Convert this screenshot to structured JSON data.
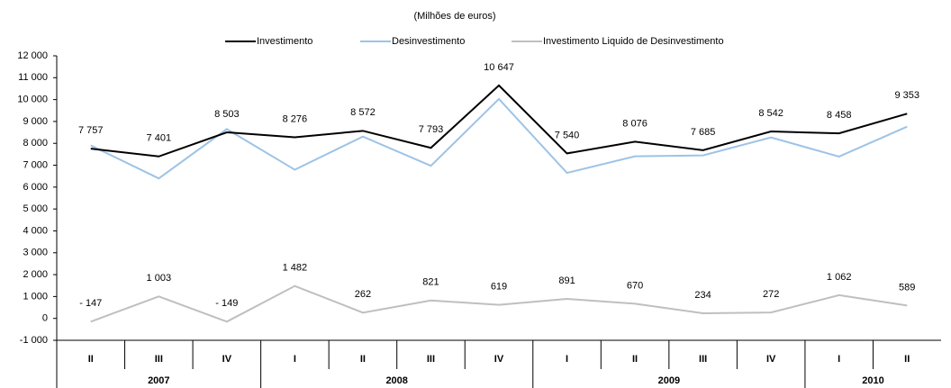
{
  "chart_data": {
    "type": "line",
    "subtitle": "(Milhões de euros)",
    "categories": [
      "II",
      "III",
      "IV",
      "I",
      "II",
      "III",
      "IV",
      "I",
      "II",
      "III",
      "IV",
      "I",
      "II"
    ],
    "x_groups": [
      "2007",
      "2007",
      "2007",
      "2008",
      "2008",
      "2008",
      "2008",
      "2009",
      "2009",
      "2009",
      "2009",
      "2010",
      "2010"
    ],
    "series": [
      {
        "name": "Investimento",
        "color": "#000000",
        "values": [
          7757,
          7401,
          8503,
          8276,
          8572,
          7793,
          10647,
          7540,
          8076,
          7685,
          8542,
          8458,
          9353
        ],
        "value_labels": [
          "7 757",
          "7 401",
          "8 503",
          "8 276",
          "8 572",
          "7 793",
          "10 647",
          "7 540",
          "8 076",
          "7 685",
          "8 542",
          "8 458",
          "9 353"
        ],
        "label_color": "#1f4e6e"
      },
      {
        "name": "Desinvestimento",
        "color": "#9dc3e6",
        "values": [
          7904,
          6398,
          8652,
          6794,
          8310,
          6972,
          10028,
          6649,
          7406,
          7451,
          8270,
          7396,
          8764
        ]
      },
      {
        "name": "Investimento Liquido de Desinvestimento",
        "color": "#bfbfbf",
        "values": [
          -147,
          1003,
          -149,
          1482,
          262,
          821,
          619,
          891,
          670,
          234,
          272,
          1062,
          589
        ],
        "value_labels": [
          "- 147",
          "1 003",
          "- 149",
          "1 482",
          "262",
          "821",
          "619",
          "891",
          "670",
          "234",
          "272",
          "1 062",
          "589"
        ],
        "label_color": "#bfbfbf"
      }
    ],
    "ylim": [
      -1000,
      12000
    ],
    "yticks": [
      {
        "value": -1000,
        "label": "-1 000"
      },
      0,
      {
        "value": 1000,
        "label": "1 000"
      },
      {
        "value": 2000,
        "label": "2 000"
      },
      {
        "value": 3000,
        "label": "3 000"
      },
      {
        "value": 4000,
        "label": "4 000"
      },
      {
        "value": 5000,
        "label": "5 000"
      },
      {
        "value": 6000,
        "label": "6 000"
      },
      {
        "value": 7000,
        "label": "7 000"
      },
      {
        "value": 8000,
        "label": "8 000"
      },
      {
        "value": 9000,
        "label": "9 000"
      },
      {
        "value": 10000,
        "label": "10 000"
      },
      {
        "value": 11000,
        "label": "11 000"
      },
      {
        "value": 12000,
        "label": "12 000"
      }
    ],
    "grid": false,
    "legend": "top"
  }
}
